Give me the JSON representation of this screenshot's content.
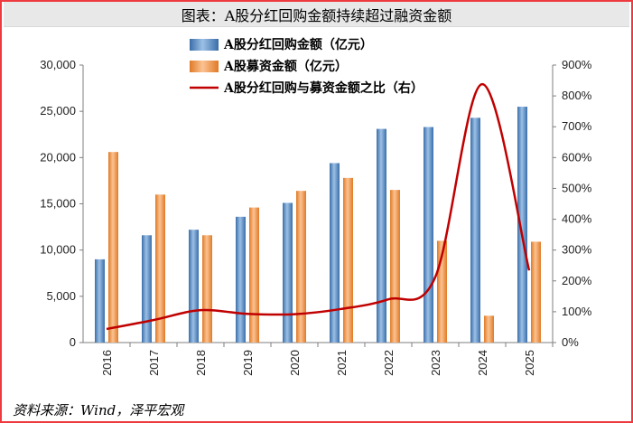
{
  "header": {
    "title": "图表：A股分红回购金额持续超过融资金额"
  },
  "footer": {
    "source": "资料来源：Wind，泽平宏观"
  },
  "colors": {
    "border": "#ee3a3f",
    "bar_dividend": "#4f81bd",
    "bar_financing": "#f79646",
    "line_ratio": "#c00000"
  },
  "chart_data": {
    "type": "bar",
    "categories": [
      "2016",
      "2017",
      "2018",
      "2019",
      "2020",
      "2021",
      "2022",
      "2023",
      "2024",
      "2025"
    ],
    "series": [
      {
        "name": "A股分红回购金额（亿元）",
        "type": "bar",
        "axis": "left",
        "values": [
          9000,
          11600,
          12200,
          13600,
          15100,
          19400,
          23100,
          23300,
          24300,
          25500
        ]
      },
      {
        "name": "A股募资金额（亿元）",
        "type": "bar",
        "axis": "left",
        "values": [
          20600,
          16000,
          11600,
          14600,
          16400,
          17800,
          16500,
          11000,
          2900,
          10900
        ]
      },
      {
        "name": "A股分红回购与募资金额之比（右）",
        "type": "line",
        "axis": "right",
        "values": [
          0.44,
          0.73,
          1.05,
          0.93,
          0.92,
          1.09,
          1.4,
          2.12,
          8.38,
          2.34
        ]
      }
    ],
    "ylim": [
      0,
      30000
    ],
    "y_ticks": [
      "0",
      "5,000",
      "10,000",
      "15,000",
      "20,000",
      "25,000",
      "30,000"
    ],
    "y2lim": [
      0,
      9
    ],
    "y2_ticks": [
      "0%",
      "100%",
      "200%",
      "300%",
      "400%",
      "500%",
      "600%",
      "700%",
      "800%",
      "900%"
    ],
    "legend_position": "top-center",
    "grid": false
  }
}
